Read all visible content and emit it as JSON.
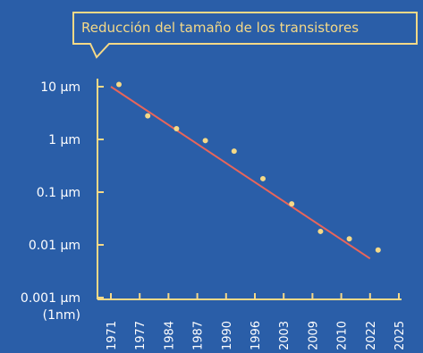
{
  "chart_data": {
    "type": "scatter",
    "title": "Reducción del tamaño de los transistores",
    "x_ticks": [
      "1971",
      "1977",
      "1984",
      "1987",
      "1990",
      "1996",
      "2003",
      "2009",
      "2010",
      "2022",
      "2025"
    ],
    "y_ticks": [
      "10 µm",
      "1 µm",
      "0.1 µm",
      "0.01 µm",
      "0.001 µm"
    ],
    "y_tick_values": [
      10,
      1,
      0.1,
      0.01,
      0.001
    ],
    "y_extra_label": "(1nm)",
    "y_scale": "log",
    "ylim": [
      0.001,
      10
    ],
    "points": [
      {
        "x": "1971",
        "y": 11
      },
      {
        "x": "1977",
        "y": 2.8
      },
      {
        "x": "1984",
        "y": 1.6
      },
      {
        "x": "1987",
        "y": 0.95
      },
      {
        "x": "1990",
        "y": 0.6
      },
      {
        "x": "1996",
        "y": 0.18
      },
      {
        "x": "2003",
        "y": 0.06
      },
      {
        "x": "2009",
        "y": 0.018
      },
      {
        "x": "2010",
        "y": 0.013
      },
      {
        "x": "2022",
        "y": 0.008
      }
    ],
    "trend_line": {
      "from": {
        "x": "1971",
        "y": 10
      },
      "to": {
        "x": "2022",
        "y": 0.0055
      }
    },
    "colors": {
      "background": "#2a5ea8",
      "axis": "#f5d987",
      "points": "#f5d987",
      "trend_line": "#e8655a",
      "tick_text": "#ffffff",
      "title_text": "#f5d987"
    }
  }
}
